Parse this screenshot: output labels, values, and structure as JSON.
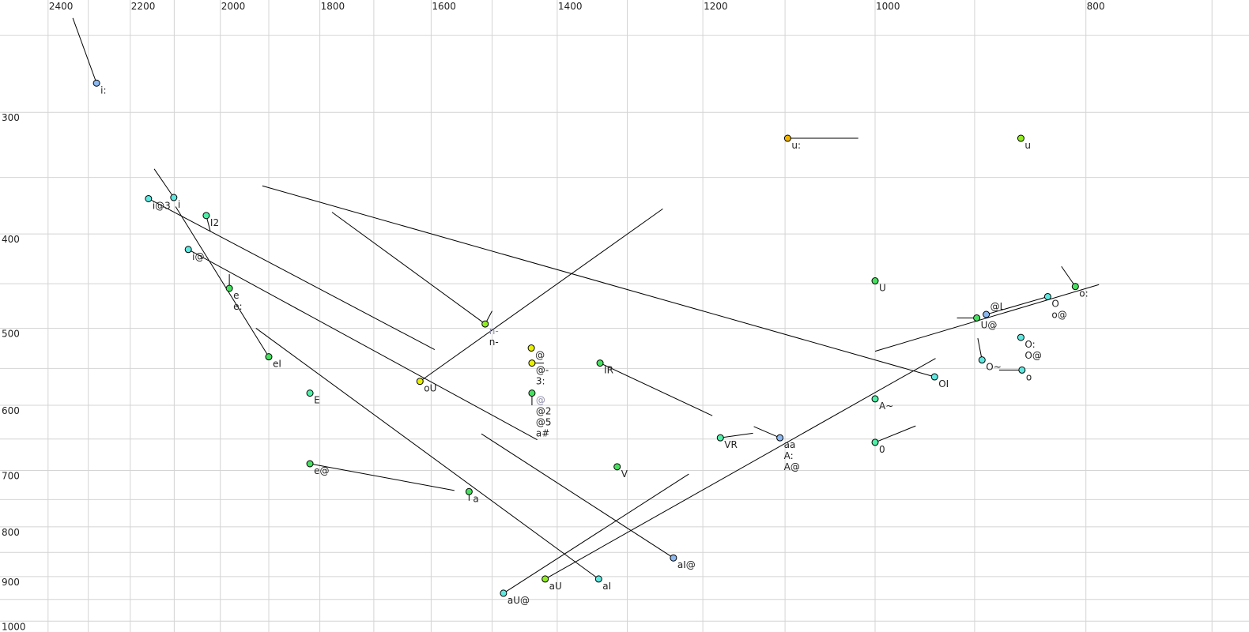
{
  "chart_data": {
    "type": "scatter",
    "title": "",
    "xlabel": "",
    "ylabel": "",
    "x_axis": {
      "scale": "log",
      "reversed": true,
      "range": [
        2525,
        673
      ],
      "grid_step": 100,
      "tick_labels": [
        2400,
        2200,
        2000,
        1800,
        1600,
        1400,
        1200,
        1000,
        800
      ]
    },
    "y_axis": {
      "scale": "log",
      "reversed": false,
      "range": [
        230,
        1027
      ],
      "grid_step": 50,
      "tick_labels": [
        300,
        400,
        500,
        600,
        700,
        800,
        900,
        1000
      ]
    },
    "grid": true,
    "colors": {
      "blue": "#8cb8f0",
      "cyan": "#5ee8e0",
      "teal": "#50f0a8",
      "green": "#48e060",
      "lime": "#90ee20",
      "yellow": "#e8f000",
      "orange": "#f0b400"
    },
    "points": [
      {
        "labels": [
          "i:"
        ],
        "f2": 2280,
        "f1": 280,
        "color": "blue",
        "to": [
          [
            2338,
            240
          ]
        ]
      },
      {
        "labels": [
          "i@3"
        ],
        "f2": 2158,
        "f1": 368,
        "color": "cyan",
        "to": [
          [
            1594,
            526
          ]
        ]
      },
      {
        "labels": [
          "i"
        ],
        "f2": 2101,
        "f1": 367,
        "color": "cyan",
        "to": [
          [
            2145,
            343
          ]
        ]
      },
      {
        "labels": [
          "I2"
        ],
        "f2": 2030,
        "f1": 383,
        "color": "teal",
        "to": [
          [
            2021,
            398
          ]
        ]
      },
      {
        "labels": [
          "i@"
        ],
        "f2": 2069,
        "f1": 415,
        "color": "cyan",
        "to": [
          [
            1430,
            651
          ]
        ]
      },
      {
        "labels": [
          "e",
          "e:"
        ],
        "f2": 1981,
        "f1": 455,
        "color": "green",
        "to": [
          [
            1981,
            440
          ]
        ]
      },
      {
        "labels": [
          "eI"
        ],
        "f2": 1900,
        "f1": 535,
        "color": "green",
        "to": [
          [
            2097,
            375
          ]
        ]
      },
      {
        "labels": [
          "E"
        ],
        "f2": 1819,
        "f1": 583,
        "color": "teal",
        "to": []
      },
      {
        "labels": [
          "e@"
        ],
        "f2": 1819,
        "f1": 689,
        "color": "green",
        "to": [
          [
            1561,
            734
          ]
        ]
      },
      {
        "labels": [
          "a"
        ],
        "f2": 1537,
        "f1": 736,
        "color": "green",
        "to": [
          [
            1537,
            752
          ]
        ]
      },
      {
        "labels": [
          "oU"
        ],
        "f2": 1619,
        "f1": 567,
        "color": "yellow",
        "to": [
          [
            1252,
            377
          ]
        ]
      },
      {
        "labels": [
          "n-",
          "n-"
        ],
        "gray_first": true,
        "f2": 1511,
        "f1": 495,
        "color": "lime",
        "to": [
          [
            1500,
            480
          ],
          [
            1777,
            380
          ]
        ]
      },
      {
        "labels": [
          "@"
        ],
        "f2": 1439,
        "f1": 524,
        "color": "yellow",
        "to": []
      },
      {
        "labels": [
          "@-",
          "3:"
        ],
        "f2": 1438,
        "f1": 543,
        "color": "yellow",
        "to": [
          [
            1420,
            543
          ]
        ]
      },
      {
        "labels": [
          "@",
          "@2",
          "@5",
          "a#"
        ],
        "gray_first": true,
        "f2": 1438,
        "f1": 583,
        "color": "green",
        "to": [
          [
            1438,
            600
          ]
        ]
      },
      {
        "labels": [
          "IR"
        ],
        "f2": 1338,
        "f1": 543,
        "color": "green",
        "to": [
          [
            1188,
            615
          ]
        ]
      },
      {
        "labels": [
          "V"
        ],
        "f2": 1314,
        "f1": 694,
        "color": "green",
        "to": []
      },
      {
        "labels": [
          "aU@"
        ],
        "f2": 1482,
        "f1": 936,
        "color": "cyan",
        "to": [
          [
            1218,
            706
          ]
        ]
      },
      {
        "labels": [
          "aU"
        ],
        "f2": 1418,
        "f1": 905,
        "color": "lime",
        "to": [
          [
            938,
            537
          ]
        ]
      },
      {
        "labels": [
          "aI"
        ],
        "f2": 1340,
        "f1": 905,
        "color": "cyan",
        "to": [
          [
            1926,
            500
          ]
        ]
      },
      {
        "labels": [
          "aI@"
        ],
        "f2": 1238,
        "f1": 861,
        "color": "blue",
        "to": [
          [
            1517,
            642
          ]
        ]
      },
      {
        "labels": [
          "VR"
        ],
        "f2": 1178,
        "f1": 648,
        "color": "teal",
        "to": [
          [
            1138,
            641
          ]
        ]
      },
      {
        "labels": [
          "aa",
          "A:",
          "A@"
        ],
        "f2": 1106,
        "f1": 648,
        "color": "blue",
        "to": [
          [
            1137,
            631
          ]
        ]
      },
      {
        "labels": [
          "A~"
        ],
        "f2": 1000,
        "f1": 591,
        "color": "teal",
        "to": []
      },
      {
        "labels": [
          "0"
        ],
        "f2": 1000,
        "f1": 655,
        "color": "teal",
        "to": [
          [
            958,
            630
          ]
        ]
      },
      {
        "labels": [
          "u:"
        ],
        "f2": 1097,
        "f1": 319,
        "color": "orange",
        "to": [
          [
            1018,
            319
          ]
        ]
      },
      {
        "labels": [
          "u"
        ],
        "f2": 857,
        "f1": 319,
        "color": "lime",
        "to": []
      },
      {
        "labels": [
          "U"
        ],
        "f2": 1000,
        "f1": 447,
        "color": "green",
        "to": []
      },
      {
        "labels": [
          "o:"
        ],
        "f2": 809,
        "f1": 453,
        "color": "green",
        "to": [
          [
            821,
            432
          ]
        ]
      },
      {
        "labels": [
          "U@"
        ],
        "f2": 898,
        "f1": 488,
        "color": "green",
        "to": [
          [
            917,
            488
          ]
        ]
      },
      {
        "labels": [
          "@L"
        ],
        "f2": 889,
        "f1": 484,
        "color": "blue",
        "to": [
          [
            833,
            464
          ]
        ]
      },
      {
        "labels": [
          "O",
          "o@"
        ],
        "f2": 833,
        "f1": 464,
        "color": "cyan",
        "to": []
      },
      {
        "labels": [
          "O:",
          "O@"
        ],
        "f2": 857,
        "f1": 511,
        "color": "cyan",
        "to": []
      },
      {
        "labels": [
          "O~"
        ],
        "f2": 893,
        "f1": 539,
        "color": "cyan",
        "to": [
          [
            897,
            512
          ]
        ]
      },
      {
        "labels": [
          "o"
        ],
        "f2": 856,
        "f1": 552,
        "color": "cyan",
        "to": [
          [
            877,
            552
          ]
        ]
      },
      {
        "labels": [
          "OI"
        ],
        "f2": 939,
        "f1": 561,
        "color": "cyan",
        "to": [
          [
            1913,
            357
          ]
        ]
      }
    ],
    "extra_segments": [
      {
        "from": [
          1000,
          528
        ],
        "to": [
          789,
          451
        ]
      }
    ]
  }
}
